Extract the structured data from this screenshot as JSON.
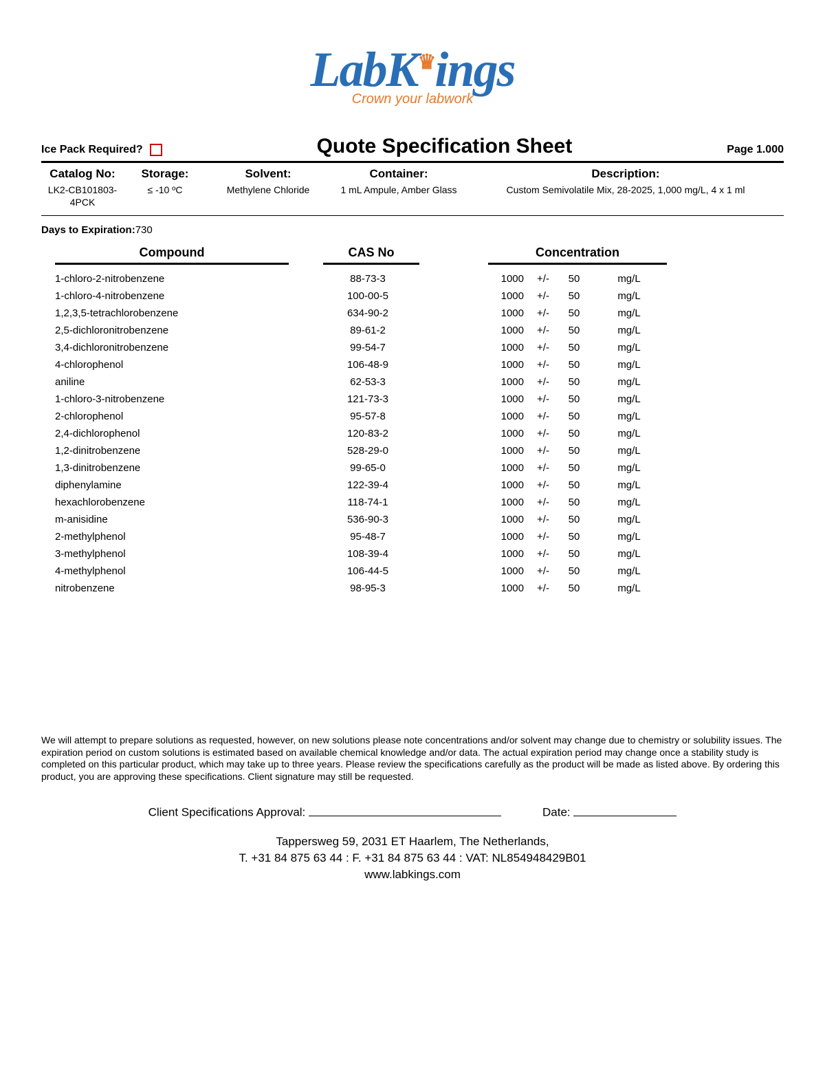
{
  "logo": {
    "main": "LabKings",
    "tagline": "Crown your labwork"
  },
  "header": {
    "ice_pack_label": "Ice Pack Required?",
    "title": "Quote Specification Sheet",
    "page_label": "Page 1.000"
  },
  "info": {
    "catalog_label": "Catalog No:",
    "catalog_value": "LK2-CB101803-4PCK",
    "storage_label": "Storage:",
    "storage_value": "≤ -10 ºC",
    "solvent_label": "Solvent:",
    "solvent_value": "Methylene Chloride",
    "container_label": "Container:",
    "container_value": "1 mL Ampule, Amber Glass",
    "description_label": "Description:",
    "description_value": "Custom Semivolatile Mix, 28-2025, 1,000 mg/L, 4 x 1 ml"
  },
  "expiration": {
    "label": "Days to Expiration:",
    "value": "730"
  },
  "table": {
    "headers": {
      "compound": "Compound",
      "cas": "CAS No",
      "concentration": "Concentration"
    },
    "pm_symbol": "+/-",
    "rows": [
      {
        "compound": "1-chloro-2-nitrobenzene",
        "cas": "88-73-3",
        "conc": "1000",
        "tol": "50",
        "unit": "mg/L"
      },
      {
        "compound": "1-chloro-4-nitrobenzene",
        "cas": "100-00-5",
        "conc": "1000",
        "tol": "50",
        "unit": "mg/L"
      },
      {
        "compound": "1,2,3,5-tetrachlorobenzene",
        "cas": "634-90-2",
        "conc": "1000",
        "tol": "50",
        "unit": "mg/L"
      },
      {
        "compound": "2,5-dichloronitrobenzene",
        "cas": "89-61-2",
        "conc": "1000",
        "tol": "50",
        "unit": "mg/L"
      },
      {
        "compound": "3,4-dichloronitrobenzene",
        "cas": "99-54-7",
        "conc": "1000",
        "tol": "50",
        "unit": "mg/L"
      },
      {
        "compound": "4-chlorophenol",
        "cas": "106-48-9",
        "conc": "1000",
        "tol": "50",
        "unit": "mg/L"
      },
      {
        "compound": "aniline",
        "cas": "62-53-3",
        "conc": "1000",
        "tol": "50",
        "unit": "mg/L"
      },
      {
        "compound": "1-chloro-3-nitrobenzene",
        "cas": "121-73-3",
        "conc": "1000",
        "tol": "50",
        "unit": "mg/L"
      },
      {
        "compound": "2-chlorophenol",
        "cas": "95-57-8",
        "conc": "1000",
        "tol": "50",
        "unit": "mg/L"
      },
      {
        "compound": "2,4-dichlorophenol",
        "cas": "120-83-2",
        "conc": "1000",
        "tol": "50",
        "unit": "mg/L"
      },
      {
        "compound": "1,2-dinitrobenzene",
        "cas": "528-29-0",
        "conc": "1000",
        "tol": "50",
        "unit": "mg/L"
      },
      {
        "compound": "1,3-dinitrobenzene",
        "cas": "99-65-0",
        "conc": "1000",
        "tol": "50",
        "unit": "mg/L"
      },
      {
        "compound": "diphenylamine",
        "cas": "122-39-4",
        "conc": "1000",
        "tol": "50",
        "unit": "mg/L"
      },
      {
        "compound": "hexachlorobenzene",
        "cas": "118-74-1",
        "conc": "1000",
        "tol": "50",
        "unit": "mg/L"
      },
      {
        "compound": "m-anisidine",
        "cas": "536-90-3",
        "conc": "1000",
        "tol": "50",
        "unit": "mg/L"
      },
      {
        "compound": "2-methylphenol",
        "cas": "95-48-7",
        "conc": "1000",
        "tol": "50",
        "unit": "mg/L"
      },
      {
        "compound": "3-methylphenol",
        "cas": "108-39-4",
        "conc": "1000",
        "tol": "50",
        "unit": "mg/L"
      },
      {
        "compound": "4-methylphenol",
        "cas": "106-44-5",
        "conc": "1000",
        "tol": "50",
        "unit": "mg/L"
      },
      {
        "compound": "nitrobenzene",
        "cas": "98-95-3",
        "conc": "1000",
        "tol": "50",
        "unit": "mg/L"
      }
    ]
  },
  "disclaimer": "We will attempt to prepare solutions as requested, however, on new solutions please note concentrations and/or solvent may change due to chemistry or solubility issues. The expiration period on custom solutions is estimated based on available chemical knowledge and/or data. The actual expiration period may change once a stability study is completed on this particular product, which may take up to three years. Please review the specifications carefully as the product will be made as listed above. By ordering this product, you are approving these specifications. Client signature may still be requested.",
  "signature": {
    "approval_label": "Client Specifications Approval:",
    "date_label": "Date:"
  },
  "footer": {
    "address": "Tappersweg 59, 2031 ET Haarlem, The Netherlands,",
    "contact": "T. +31 84 875 63 44 : F. +31 84 875 63 44 : VAT: NL854948429B01",
    "website": "www.labkings.com"
  },
  "colors": {
    "brand_blue": "#2a6fb5",
    "brand_orange": "#e67a2e",
    "checkbox_red": "#d00000",
    "text": "#000000",
    "background": "#ffffff"
  }
}
